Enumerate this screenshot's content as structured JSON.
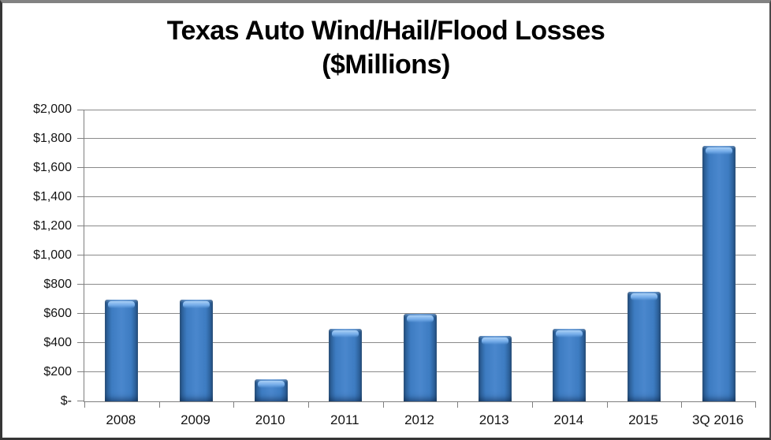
{
  "title": {
    "line1": "Texas Auto Wind/Hail/Flood Losses",
    "line2": "($Millions)"
  },
  "chart_data": {
    "type": "bar",
    "title": "Texas Auto Wind/Hail/Flood Losses ($Millions)",
    "categories": [
      "2008",
      "2009",
      "2010",
      "2011",
      "2012",
      "2013",
      "2014",
      "2015",
      "3Q 2016"
    ],
    "values": [
      700,
      700,
      150,
      500,
      600,
      450,
      500,
      750,
      1750
    ],
    "xlabel": "",
    "ylabel": "",
    "ylim": [
      0,
      2000
    ],
    "ytick_interval": 200,
    "ytick_labels": [
      "$-",
      "$200",
      "$400",
      "$600",
      "$800",
      "$1,000",
      "$1,200",
      "$1,400",
      "$1,600",
      "$1,800",
      "$2,000"
    ],
    "grid": true,
    "legend": false,
    "colors": {
      "bar_fill": "#3D7CC2",
      "bar_edge": "#1D4672",
      "bar_highlight": "#A9CFF5",
      "gridline": "#8A8A8A",
      "axis": "#7F7F7F",
      "text": "#141414"
    }
  }
}
